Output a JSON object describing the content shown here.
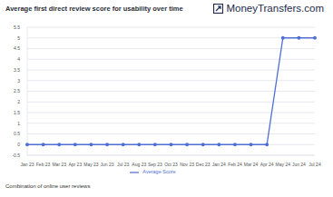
{
  "chart_data": {
    "type": "line",
    "title": "Average first direct review score for usability over time",
    "categories": [
      "Jan 23",
      "Feb 23",
      "Mar 23",
      "Apr 23",
      "May 23",
      "Jun 23",
      "Jul 23",
      "Aug 23",
      "Sep 23",
      "Oct 23",
      "Nov 23",
      "Dec 23",
      "Jan 24",
      "Feb 24",
      "Mar 24",
      "Apr 24",
      "May 24",
      "Jun 24",
      "Jul 24"
    ],
    "series": [
      {
        "name": "Average Score",
        "color": "#4f6fd6",
        "values": [
          0,
          0,
          0,
          0,
          0,
          0,
          0,
          0,
          0,
          0,
          0,
          0,
          0,
          0,
          0,
          0,
          5,
          5,
          5
        ],
        "marker": "circle"
      }
    ],
    "ylim": [
      -0.5,
      5.5
    ],
    "yticks": [
      -0.5,
      0,
      0.5,
      1,
      1.5,
      2,
      2.5,
      3,
      3.5,
      4,
      4.5,
      5,
      5.5
    ],
    "grid": true,
    "legend": "bottom"
  },
  "logo": "MoneyTransfers.com",
  "footer": "Combination of online user reviews"
}
